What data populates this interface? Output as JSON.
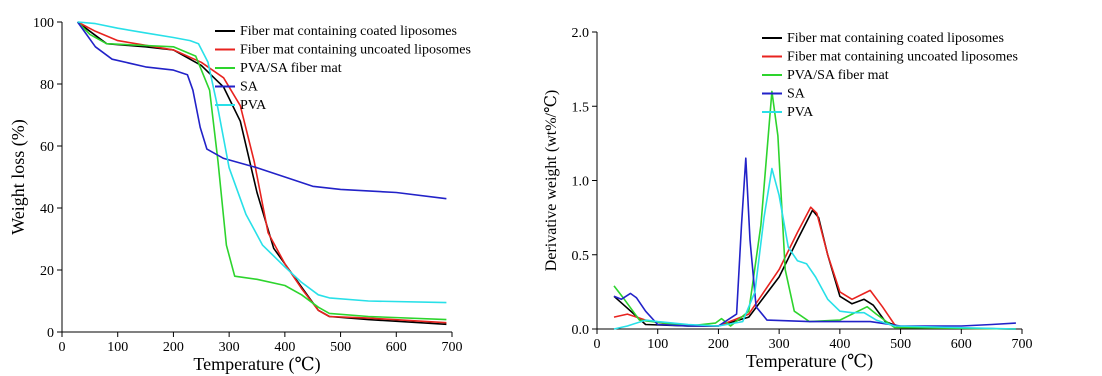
{
  "chart_data": [
    {
      "type": "line",
      "xlabel": "Temperature (℃)",
      "ylabel": "Weight loss (%)",
      "xlim": [
        0,
        700
      ],
      "ylim": [
        0,
        100
      ],
      "xticks": [
        "0",
        "100",
        "200",
        "300",
        "400",
        "500",
        "600",
        "700"
      ],
      "yticks": [
        "0",
        "20",
        "40",
        "60",
        "80",
        "100"
      ],
      "grid": false,
      "legend_position": "top-right",
      "series": [
        {
          "name": "Fiber mat containing coated liposomes",
          "color": "#000000",
          "points": [
            [
              28,
              100
            ],
            [
              50,
              97
            ],
            [
              80,
              93
            ],
            [
              150,
              92
            ],
            [
              200,
              91
            ],
            [
              250,
              86
            ],
            [
              290,
              79
            ],
            [
              320,
              68
            ],
            [
              350,
              45
            ],
            [
              380,
              27
            ],
            [
              420,
              17
            ],
            [
              460,
              7
            ],
            [
              480,
              5
            ],
            [
              550,
              4
            ],
            [
              690,
              2.5
            ]
          ]
        },
        {
          "name": "Fiber mat containing uncoated liposomes",
          "color": "#e8231f",
          "points": [
            [
              28,
              100
            ],
            [
              60,
              97
            ],
            [
              100,
              94
            ],
            [
              200,
              91
            ],
            [
              250,
              87
            ],
            [
              290,
              82
            ],
            [
              320,
              73
            ],
            [
              345,
              55
            ],
            [
              370,
              32
            ],
            [
              400,
              22
            ],
            [
              430,
              14
            ],
            [
              460,
              7
            ],
            [
              480,
              5
            ],
            [
              550,
              4.5
            ],
            [
              690,
              3
            ]
          ]
        },
        {
          "name": "PVA/SA fiber mat",
          "color": "#2dd42d",
          "points": [
            [
              28,
              100
            ],
            [
              50,
              96
            ],
            [
              80,
              93
            ],
            [
              200,
              92
            ],
            [
              240,
              89
            ],
            [
              265,
              78
            ],
            [
              280,
              55
            ],
            [
              295,
              28
            ],
            [
              310,
              18
            ],
            [
              350,
              17
            ],
            [
              400,
              15
            ],
            [
              430,
              12
            ],
            [
              460,
              8
            ],
            [
              480,
              6
            ],
            [
              550,
              5
            ],
            [
              690,
              4
            ]
          ]
        },
        {
          "name": "SA",
          "color": "#2222c8",
          "points": [
            [
              28,
              100
            ],
            [
              60,
              92
            ],
            [
              90,
              88
            ],
            [
              150,
              85.5
            ],
            [
              200,
              84.5
            ],
            [
              225,
              83
            ],
            [
              235,
              78
            ],
            [
              248,
              66
            ],
            [
              260,
              59
            ],
            [
              290,
              56
            ],
            [
              350,
              53
            ],
            [
              400,
              50
            ],
            [
              450,
              47
            ],
            [
              500,
              46
            ],
            [
              600,
              45
            ],
            [
              690,
              43
            ]
          ]
        },
        {
          "name": "PVA",
          "color": "#28e0e8",
          "points": [
            [
              28,
              100
            ],
            [
              60,
              99.5
            ],
            [
              100,
              98
            ],
            [
              150,
              96.5
            ],
            [
              200,
              95
            ],
            [
              230,
              94
            ],
            [
              245,
              93
            ],
            [
              262,
              87
            ],
            [
              280,
              72
            ],
            [
              300,
              53
            ],
            [
              330,
              38
            ],
            [
              360,
              28
            ],
            [
              400,
              21
            ],
            [
              430,
              16
            ],
            [
              460,
              12
            ],
            [
              480,
              11
            ],
            [
              550,
              10
            ],
            [
              690,
              9.5
            ]
          ]
        }
      ]
    },
    {
      "type": "line",
      "xlabel": "Temperature (℃)",
      "ylabel": "Derivative weight (wt%/℃)",
      "xlim": [
        0,
        700
      ],
      "ylim": [
        0,
        2.0
      ],
      "xticks": [
        "0",
        "100",
        "200",
        "300",
        "400",
        "500",
        "600",
        "700"
      ],
      "yticks": [
        "0.0",
        "0.5",
        "1.0",
        "1.5",
        "2.0"
      ],
      "grid": false,
      "legend_position": "top-right",
      "series": [
        {
          "name": "Fiber mat containing coated liposomes",
          "color": "#000000",
          "points": [
            [
              28,
              0.22
            ],
            [
              50,
              0.14
            ],
            [
              80,
              0.03
            ],
            [
              150,
              0.02
            ],
            [
              200,
              0.02
            ],
            [
              250,
              0.08
            ],
            [
              300,
              0.35
            ],
            [
              330,
              0.6
            ],
            [
              355,
              0.8
            ],
            [
              365,
              0.75
            ],
            [
              380,
              0.5
            ],
            [
              400,
              0.22
            ],
            [
              420,
              0.17
            ],
            [
              440,
              0.2
            ],
            [
              455,
              0.16
            ],
            [
              475,
              0.05
            ],
            [
              500,
              0.01
            ],
            [
              690,
              0.0
            ]
          ]
        },
        {
          "name": "Fiber mat containing uncoated liposomes",
          "color": "#e8231f",
          "points": [
            [
              28,
              0.08
            ],
            [
              50,
              0.1
            ],
            [
              80,
              0.06
            ],
            [
              120,
              0.03
            ],
            [
              200,
              0.02
            ],
            [
              250,
              0.1
            ],
            [
              300,
              0.4
            ],
            [
              330,
              0.65
            ],
            [
              352,
              0.82
            ],
            [
              362,
              0.78
            ],
            [
              380,
              0.5
            ],
            [
              400,
              0.25
            ],
            [
              420,
              0.2
            ],
            [
              440,
              0.24
            ],
            [
              450,
              0.26
            ],
            [
              470,
              0.15
            ],
            [
              490,
              0.03
            ],
            [
              500,
              0.01
            ],
            [
              690,
              0.0
            ]
          ]
        },
        {
          "name": "PVA/SA fiber mat",
          "color": "#2dd42d",
          "points": [
            [
              28,
              0.29
            ],
            [
              45,
              0.2
            ],
            [
              70,
              0.06
            ],
            [
              150,
              0.02
            ],
            [
              195,
              0.04
            ],
            [
              205,
              0.07
            ],
            [
              220,
              0.02
            ],
            [
              250,
              0.12
            ],
            [
              270,
              0.7
            ],
            [
              288,
              1.6
            ],
            [
              298,
              1.3
            ],
            [
              310,
              0.4
            ],
            [
              325,
              0.12
            ],
            [
              350,
              0.05
            ],
            [
              400,
              0.06
            ],
            [
              430,
              0.12
            ],
            [
              445,
              0.15
            ],
            [
              460,
              0.1
            ],
            [
              490,
              0.01
            ],
            [
              690,
              0.0
            ]
          ]
        },
        {
          "name": "SA",
          "color": "#2222c8",
          "points": [
            [
              28,
              0.22
            ],
            [
              40,
              0.2
            ],
            [
              55,
              0.24
            ],
            [
              65,
              0.21
            ],
            [
              80,
              0.12
            ],
            [
              100,
              0.03
            ],
            [
              150,
              0.02
            ],
            [
              200,
              0.02
            ],
            [
              230,
              0.1
            ],
            [
              238,
              0.7
            ],
            [
              245,
              1.15
            ],
            [
              252,
              0.6
            ],
            [
              262,
              0.15
            ],
            [
              280,
              0.06
            ],
            [
              350,
              0.05
            ],
            [
              450,
              0.05
            ],
            [
              500,
              0.02
            ],
            [
              600,
              0.02
            ],
            [
              650,
              0.03
            ],
            [
              690,
              0.04
            ]
          ]
        },
        {
          "name": "PVA",
          "color": "#28e0e8",
          "points": [
            [
              28,
              0.0
            ],
            [
              50,
              0.02
            ],
            [
              80,
              0.06
            ],
            [
              100,
              0.05
            ],
            [
              150,
              0.03
            ],
            [
              200,
              0.02
            ],
            [
              240,
              0.05
            ],
            [
              260,
              0.25
            ],
            [
              275,
              0.75
            ],
            [
              288,
              1.08
            ],
            [
              300,
              0.9
            ],
            [
              315,
              0.55
            ],
            [
              330,
              0.46
            ],
            [
              345,
              0.44
            ],
            [
              360,
              0.35
            ],
            [
              380,
              0.2
            ],
            [
              400,
              0.12
            ],
            [
              420,
              0.11
            ],
            [
              440,
              0.11
            ],
            [
              460,
              0.06
            ],
            [
              490,
              0.02
            ],
            [
              690,
              0.0
            ]
          ]
        }
      ]
    }
  ]
}
